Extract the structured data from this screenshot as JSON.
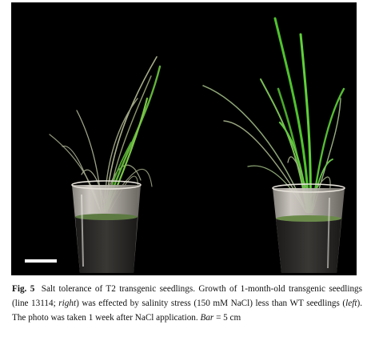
{
  "figure": {
    "label": "Fig. 5",
    "caption": {
      "title": "Salt tolerance of T2 transgenic seedlings.",
      "p1": "Growth of 1-month-old transgenic seedlings (line 13114; ",
      "right_word": "right",
      "p2": ") was effected by salinity stress (150 mM NaCl) less than WT seedlings (",
      "left_word": "left",
      "p3": "). The photo was taken 1 week after NaCl application. ",
      "bar_word": "Bar",
      "p4": " = 5 cm"
    },
    "photo": {
      "background": "#000000",
      "leaf_color_wt": "#9aa080",
      "leaf_color_transgenic": "#5fbf3a",
      "cup_color": "#d8d4cc",
      "soil_color": "#2a2826",
      "scale_bar_color": "#ffffff"
    }
  }
}
